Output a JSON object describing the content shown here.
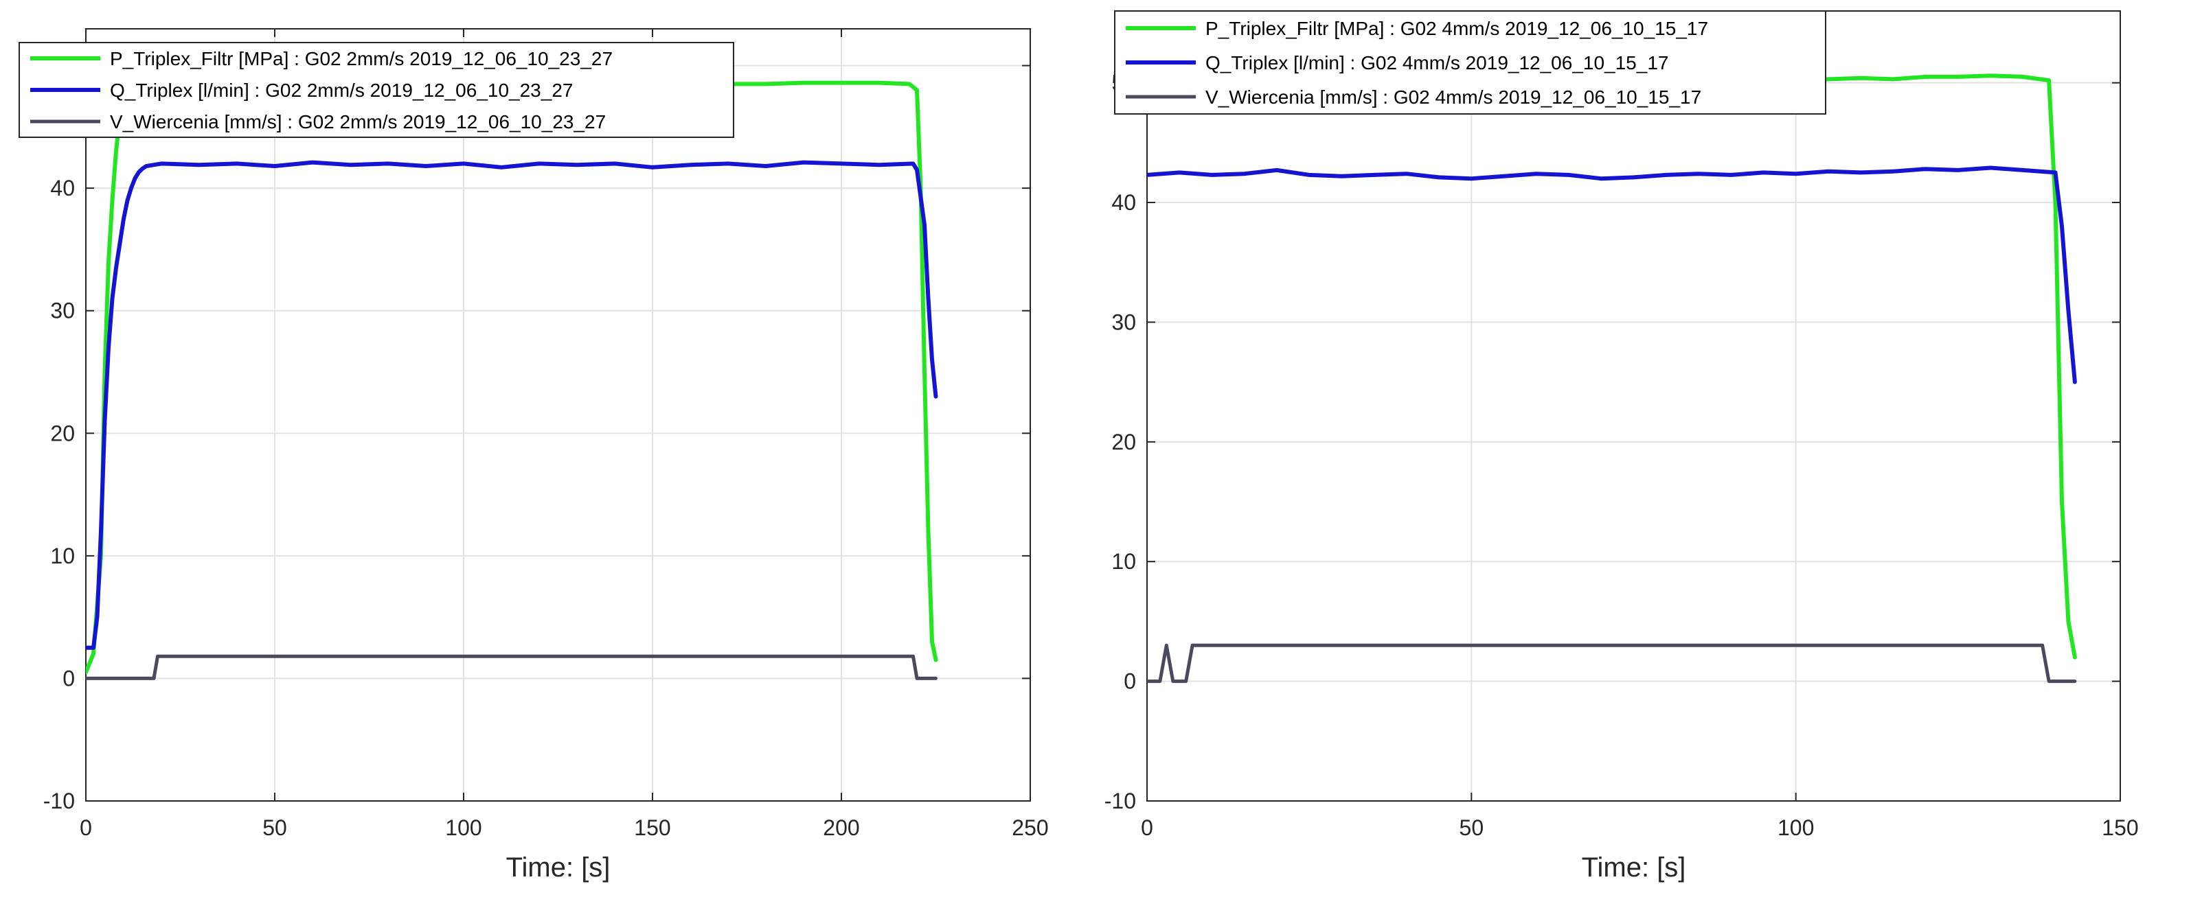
{
  "chart_data": [
    {
      "type": "line",
      "title": "",
      "xlabel": "Time: [s]",
      "ylabel": "",
      "xlim": [
        0,
        250
      ],
      "ylim": [
        -10,
        53
      ],
      "x_ticks": [
        "0",
        "50",
        "100",
        "150",
        "200",
        "250"
      ],
      "y_ticks": [
        "-10",
        "0",
        "10",
        "20",
        "30",
        "40",
        "50"
      ],
      "grid": true,
      "legend_position": "top-left",
      "series": [
        {
          "name": "P_Triplex_Filtr [MPa] : G02 2mm/s 2019_12_06_10_23_27",
          "color": "#22e622",
          "x": [
            0,
            2,
            4,
            5,
            6,
            7,
            8,
            9,
            10,
            11,
            12,
            13,
            14,
            15,
            20,
            30,
            40,
            50,
            60,
            70,
            80,
            90,
            100,
            110,
            120,
            130,
            140,
            150,
            160,
            170,
            180,
            190,
            200,
            210,
            218,
            220,
            221,
            222,
            223,
            224,
            225
          ],
          "y": [
            0.5,
            2,
            10,
            25,
            34,
            39,
            43,
            46,
            48.5,
            49.8,
            50.2,
            49.8,
            49.5,
            49.3,
            49.0,
            48.8,
            48.6,
            48.4,
            48.2,
            48.3,
            48.0,
            48.2,
            47.8,
            48.1,
            48.0,
            48.2,
            48.3,
            48.0,
            48.2,
            48.5,
            48.5,
            48.6,
            48.6,
            48.6,
            48.5,
            48.0,
            40,
            25,
            12,
            3,
            1.5
          ]
        },
        {
          "name": "Q_Triplex [l/min] : G02 2mm/s 2019_12_06_10_23_27",
          "color": "#1414d2",
          "x": [
            0,
            2,
            3,
            4,
            5,
            6,
            7,
            8,
            9,
            10,
            11,
            12,
            13,
            14,
            15,
            16,
            18,
            20,
            30,
            40,
            50,
            60,
            70,
            80,
            90,
            100,
            110,
            120,
            130,
            140,
            150,
            160,
            170,
            180,
            190,
            200,
            210,
            219,
            220,
            222,
            223,
            224,
            225
          ],
          "y": [
            2.5,
            2.5,
            5,
            12,
            21,
            27,
            31,
            33.5,
            35.5,
            37.5,
            39,
            40,
            40.8,
            41.3,
            41.6,
            41.8,
            41.9,
            42.0,
            41.9,
            42.0,
            41.8,
            42.1,
            41.9,
            42.0,
            41.8,
            42.0,
            41.7,
            42.0,
            41.9,
            42.0,
            41.7,
            41.9,
            42.0,
            41.8,
            42.1,
            42.0,
            41.9,
            42.0,
            41.5,
            37,
            31,
            26,
            23
          ]
        },
        {
          "name": "V_Wiercenia [mm/s] : G02 2mm/s 2019_12_06_10_23_27",
          "color": "#4a4a5e",
          "x": [
            0,
            18,
            19,
            20,
            40,
            60,
            80,
            100,
            120,
            140,
            160,
            180,
            200,
            219,
            220,
            225
          ],
          "y": [
            0,
            0,
            1.8,
            1.8,
            1.8,
            1.8,
            1.8,
            1.8,
            1.8,
            1.8,
            1.8,
            1.8,
            1.8,
            1.8,
            0,
            0
          ]
        }
      ]
    },
    {
      "type": "line",
      "title": "",
      "xlabel": "Time: [s]",
      "ylabel": "",
      "xlim": [
        0,
        150
      ],
      "ylim": [
        -10,
        56
      ],
      "x_ticks": [
        "0",
        "50",
        "100",
        "150"
      ],
      "y_ticks": [
        "-10",
        "0",
        "10",
        "20",
        "30",
        "40",
        "50"
      ],
      "grid": true,
      "legend_position": "top-left",
      "series": [
        {
          "name": "P_Triplex_Filtr [MPa] : G02 4mm/s 2019_12_06_10_15_17",
          "color": "#22e622",
          "x": [
            0,
            5,
            10,
            15,
            20,
            25,
            30,
            35,
            40,
            45,
            50,
            55,
            60,
            65,
            70,
            75,
            80,
            85,
            90,
            95,
            100,
            105,
            110,
            115,
            120,
            125,
            130,
            135,
            139,
            140,
            141,
            142,
            143
          ],
          "y": [
            51.0,
            51.0,
            50.8,
            50.7,
            50.5,
            50.3,
            50.5,
            50.6,
            50.3,
            50.0,
            50.2,
            50.0,
            50.1,
            50.2,
            50.3,
            50.0,
            50.1,
            50.2,
            50.0,
            50.1,
            50.2,
            50.3,
            50.4,
            50.3,
            50.5,
            50.5,
            50.6,
            50.5,
            50.2,
            40,
            15,
            5,
            2
          ]
        },
        {
          "name": "Q_Triplex [l/min] : G02 4mm/s 2019_12_06_10_15_17",
          "color": "#1414d2",
          "x": [
            0,
            5,
            10,
            15,
            20,
            25,
            30,
            35,
            40,
            45,
            50,
            55,
            60,
            65,
            70,
            75,
            80,
            85,
            90,
            95,
            100,
            105,
            110,
            115,
            120,
            125,
            130,
            135,
            140,
            141,
            142,
            143
          ],
          "y": [
            42.3,
            42.5,
            42.3,
            42.4,
            42.7,
            42.3,
            42.2,
            42.3,
            42.4,
            42.1,
            42.0,
            42.2,
            42.4,
            42.3,
            42.0,
            42.1,
            42.3,
            42.4,
            42.3,
            42.5,
            42.4,
            42.6,
            42.5,
            42.6,
            42.8,
            42.7,
            42.9,
            42.7,
            42.5,
            38,
            31,
            25
          ]
        },
        {
          "name": "V_Wiercenia [mm/s] : G02 4mm/s 2019_12_06_10_15_17",
          "color": "#4a4a5e",
          "x": [
            0,
            2,
            3,
            4,
            6,
            7,
            10,
            20,
            30,
            40,
            50,
            60,
            70,
            80,
            90,
            100,
            110,
            120,
            130,
            138,
            139,
            140,
            143
          ],
          "y": [
            0,
            0,
            3,
            0,
            0,
            3,
            3,
            3,
            3,
            3,
            3,
            3,
            3,
            3,
            3,
            3,
            3,
            3,
            3,
            3,
            0,
            0,
            0
          ]
        }
      ]
    }
  ]
}
